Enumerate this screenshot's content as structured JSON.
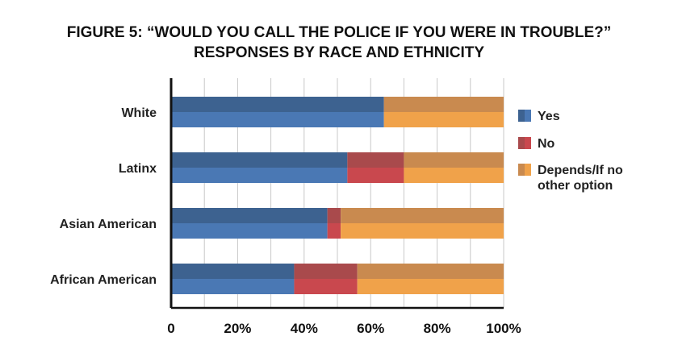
{
  "title_line1": "FIGURE 5: “WOULD YOU CALL THE POLICE IF YOU WERE IN TROUBLE?”",
  "title_line2": "RESPONSES BY RACE AND ETHNICITY",
  "chart_data": {
    "type": "bar",
    "orientation": "horizontal",
    "stacked": true,
    "title": "FIGURE 5: “WOULD YOU CALL THE POLICE IF YOU WERE IN TROUBLE?” RESPONSES BY RACE AND ETHNICITY",
    "categories": [
      "White",
      "Latinx",
      "Asian American",
      "African American"
    ],
    "series": [
      {
        "name": "Yes",
        "values": [
          64,
          53,
          47,
          37
        ],
        "color": "#4a78b4",
        "shade": "#3d6290"
      },
      {
        "name": "No",
        "values": [
          0,
          17,
          4,
          19
        ],
        "color": "#c9484e",
        "shade": "#a94a4c"
      },
      {
        "name": "Depends/If no other option",
        "values": [
          36,
          30,
          49,
          44
        ],
        "color": "#f0a24a",
        "shade": "#c98a4f"
      }
    ],
    "xlim": [
      0,
      100
    ],
    "xticks": [
      0,
      20,
      40,
      60,
      80,
      100
    ],
    "xtick_labels": [
      "0",
      "20%",
      "40%",
      "60%",
      "80%",
      "100%"
    ],
    "legend_entries": [
      [
        "Yes"
      ],
      [
        "No"
      ],
      [
        "Depends/If no",
        "other option"
      ]
    ],
    "grid": true,
    "legend_position": "right"
  }
}
